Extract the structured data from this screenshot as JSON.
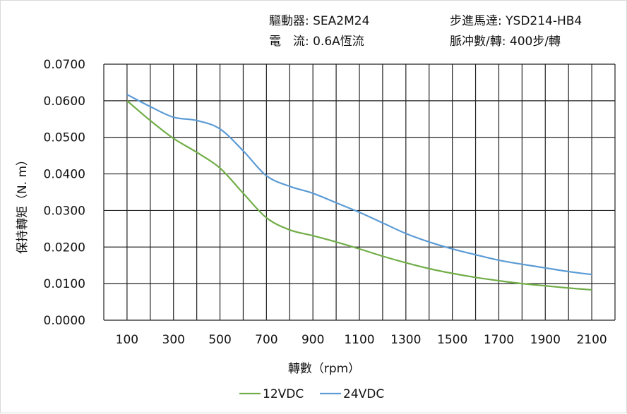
{
  "header": {
    "driver_label": "驅動器:",
    "driver_value": "SEA2M24",
    "motor_label": "步進馬達:",
    "motor_value": "YSD214-HB4",
    "current_label": "電　流:",
    "current_value": "0.6A恆流",
    "pulse_label": "脈冲數/轉:",
    "pulse_value": "400步/轉"
  },
  "chart_data": {
    "type": "line",
    "xlabel": "轉數（rpm）",
    "ylabel": "保持轉矩（N. m）",
    "xlim": [
      0,
      2200
    ],
    "ylim": [
      0,
      0.07
    ],
    "grid": true,
    "legend_position": "bottom",
    "x_ticks": [
      "100",
      "300",
      "500",
      "700",
      "900",
      "1100",
      "1300",
      "1500",
      "1700",
      "1900",
      "2100"
    ],
    "y_ticks": [
      "0.0000",
      "0.0100",
      "0.0200",
      "0.0300",
      "0.0400",
      "0.0500",
      "0.0600",
      "0.0700"
    ],
    "x": [
      100,
      200,
      300,
      400,
      500,
      600,
      700,
      800,
      900,
      1000,
      1100,
      1200,
      1300,
      1400,
      1500,
      1600,
      1700,
      1800,
      1900,
      2000,
      2100
    ],
    "series": [
      {
        "name": "12VDC",
        "color": "#70ad47",
        "values": [
          0.06,
          0.0546,
          0.0497,
          0.0459,
          0.0416,
          0.0347,
          0.028,
          0.0247,
          0.0231,
          0.0214,
          0.0195,
          0.0175,
          0.0157,
          0.0141,
          0.0128,
          0.0117,
          0.0108,
          0.01,
          0.0094,
          0.0088,
          0.0083
        ]
      },
      {
        "name": "24VDC",
        "color": "#5b9bd5",
        "values": [
          0.0617,
          0.0584,
          0.0555,
          0.0546,
          0.0523,
          0.0463,
          0.0395,
          0.0366,
          0.0347,
          0.0321,
          0.0295,
          0.0266,
          0.0237,
          0.0214,
          0.0195,
          0.0179,
          0.0164,
          0.0153,
          0.0143,
          0.0133,
          0.0125
        ]
      }
    ]
  }
}
